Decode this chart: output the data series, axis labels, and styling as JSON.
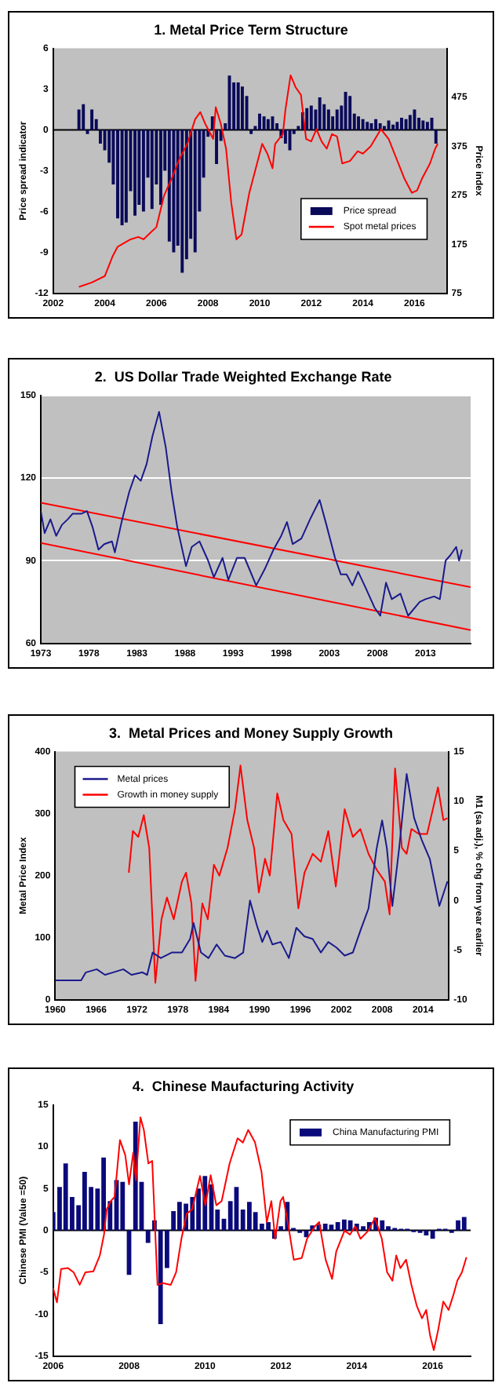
{
  "chart_data": [
    {
      "type": "bar",
      "title": "1. Metal Price Term Structure",
      "ylabel": "Price spread indicator",
      "y2label": "Price index",
      "xlim": [
        2002,
        2017.25
      ],
      "xticks": [
        2002,
        2004,
        2006,
        2008,
        2010,
        2012,
        2014,
        2016
      ],
      "ylim": [
        -12,
        6
      ],
      "yticks": [
        -12,
        -9,
        -6,
        -3,
        0,
        3,
        6
      ],
      "y2lim": [
        75,
        575
      ],
      "y2ticks": [
        75,
        175,
        275,
        375,
        475
      ],
      "legend": "bottom right",
      "series": [
        {
          "name": "Price spread",
          "type": "bar",
          "color": "#0a0a5a",
          "x": [
            2003.0,
            2003.17,
            2003.33,
            2003.5,
            2003.67,
            2003.83,
            2004.0,
            2004.17,
            2004.33,
            2004.5,
            2004.67,
            2004.83,
            2005.0,
            2005.17,
            2005.33,
            2005.5,
            2005.67,
            2005.83,
            2006.0,
            2006.17,
            2006.33,
            2006.5,
            2006.67,
            2006.83,
            2007.0,
            2007.17,
            2007.33,
            2007.5,
            2007.67,
            2007.83,
            2008.0,
            2008.17,
            2008.33,
            2008.5,
            2008.67,
            2008.83,
            2009.0,
            2009.17,
            2009.33,
            2009.5,
            2009.67,
            2009.83,
            2010.0,
            2010.17,
            2010.33,
            2010.5,
            2010.67,
            2010.83,
            2011.0,
            2011.17,
            2011.33,
            2011.5,
            2011.67,
            2011.83,
            2012.0,
            2012.17,
            2012.33,
            2012.5,
            2012.67,
            2012.83,
            2013.0,
            2013.17,
            2013.33,
            2013.5,
            2013.67,
            2013.83,
            2014.0,
            2014.17,
            2014.33,
            2014.5,
            2014.67,
            2014.83,
            2015.0,
            2015.17,
            2015.33,
            2015.5,
            2015.67,
            2015.83,
            2016.0,
            2016.17,
            2016.33,
            2016.5,
            2016.67,
            2016.83
          ],
          "values": [
            1.5,
            1.9,
            -0.3,
            1.5,
            0.8,
            -1.0,
            -1.5,
            -2.4,
            -4.0,
            -6.5,
            -7.0,
            -6.8,
            -4.5,
            -6.3,
            -5.5,
            -6.0,
            -3.5,
            -5.8,
            -4.0,
            -5.5,
            -3.0,
            -8.2,
            -9.0,
            -8.5,
            -10.5,
            -9.5,
            -8.0,
            -9.0,
            -6.0,
            -3.5,
            -0.5,
            1.0,
            -2.5,
            -0.8,
            0.5,
            4.0,
            3.5,
            3.5,
            3.2,
            2.5,
            -0.3,
            0.3,
            1.2,
            1.0,
            0.8,
            1.0,
            0.5,
            -0.6,
            -1.0,
            -1.5,
            -0.3,
            0.3,
            1.3,
            1.6,
            1.8,
            1.5,
            2.4,
            1.9,
            1.5,
            1.0,
            1.5,
            1.8,
            2.8,
            2.5,
            1.2,
            1.0,
            0.8,
            0.6,
            0.5,
            0.8,
            0.5,
            0.3,
            0.7,
            0.4,
            0.6,
            0.9,
            0.8,
            1.1,
            1.5,
            0.9,
            0.7,
            0.6,
            0.9,
            -1.0
          ]
        },
        {
          "name": "Spot metal prices",
          "type": "line",
          "axis": "y2",
          "color": "#ff0000",
          "x": [
            2003.0,
            2003.5,
            2004.0,
            2004.3,
            2004.5,
            2005.0,
            2005.3,
            2005.5,
            2005.8,
            2006.0,
            2006.3,
            2006.6,
            2006.9,
            2007.2,
            2007.5,
            2007.7,
            2007.9,
            2008.2,
            2008.3,
            2008.5,
            2008.7,
            2008.9,
            2009.1,
            2009.3,
            2009.6,
            2009.9,
            2010.1,
            2010.3,
            2010.5,
            2010.6,
            2010.9,
            2011.0,
            2011.2,
            2011.4,
            2011.6,
            2011.8,
            2012.0,
            2012.2,
            2012.4,
            2012.6,
            2012.8,
            2013.0,
            2013.2,
            2013.5,
            2013.8,
            2014.0,
            2014.3,
            2014.7,
            2015.0,
            2015.3,
            2015.6,
            2015.9,
            2016.1,
            2016.3,
            2016.6,
            2016.8,
            2016.9
          ],
          "values": [
            88,
            97,
            110,
            150,
            170,
            185,
            190,
            185,
            200,
            210,
            275,
            310,
            350,
            380,
            430,
            445,
            420,
            390,
            455,
            420,
            370,
            260,
            185,
            195,
            280,
            340,
            380,
            360,
            330,
            380,
            400,
            450,
            520,
            495,
            480,
            390,
            385,
            410,
            385,
            370,
            400,
            395,
            340,
            345,
            365,
            360,
            375,
            410,
            390,
            350,
            310,
            280,
            285,
            310,
            340,
            370,
            380
          ]
        }
      ]
    },
    {
      "type": "line",
      "title": "2.  US Dollar Trade Weighted Exchange Rate",
      "xlim": [
        1973,
        2017.7
      ],
      "xticks": [
        1973,
        1978,
        1983,
        1988,
        1993,
        1998,
        2003,
        2008,
        2013
      ],
      "ylim": [
        60,
        150
      ],
      "yticks": [
        60,
        90,
        120,
        150
      ],
      "grid": "y",
      "series": [
        {
          "color": "#1a1a8c",
          "x": [
            1973.0,
            1973.4,
            1974.0,
            1974.6,
            1975.2,
            1975.8,
            1976.3,
            1977.2,
            1977.8,
            1978.4,
            1979.0,
            1979.6,
            1980.4,
            1980.7,
            1981.4,
            1982.2,
            1982.8,
            1983.4,
            1984.0,
            1984.6,
            1985.3,
            1986.0,
            1986.6,
            1987.2,
            1988.1,
            1988.7,
            1989.5,
            1990.4,
            1991.0,
            1991.9,
            1992.5,
            1993.4,
            1994.2,
            1995.4,
            1996.3,
            1997.2,
            1998.0,
            1998.6,
            1999.2,
            2000.1,
            2001.0,
            2002.0,
            2002.7,
            2003.6,
            2004.2,
            2004.8,
            2005.4,
            2006.0,
            2006.8,
            2007.7,
            2008.3,
            2008.9,
            2009.5,
            2010.4,
            2011.2,
            2012.4,
            2013.0,
            2013.9,
            2014.5,
            2015.1,
            2015.6,
            2016.2,
            2016.5,
            2016.8
          ],
          "values": [
            108,
            100,
            105,
            99,
            103,
            105,
            107,
            107,
            108,
            102,
            94,
            96,
            97,
            93,
            104,
            115,
            121,
            119,
            125,
            135,
            144,
            131,
            115,
            102,
            88,
            95,
            97,
            90,
            84,
            91,
            83,
            91,
            91,
            81,
            87,
            94,
            99,
            104,
            96,
            98,
            105,
            112,
            103,
            91,
            85,
            85,
            81,
            86,
            80,
            73,
            70,
            82,
            76,
            78,
            70,
            75,
            76,
            77,
            76,
            90,
            92,
            95,
            90,
            94
          ]
        },
        {
          "color": "#ff0000",
          "x": [
            1973,
            2017.7
          ],
          "values": [
            111,
            80.4
          ]
        },
        {
          "color": "#ff0000",
          "x": [
            1973,
            2017.7
          ],
          "values": [
            96.4,
            64.8
          ]
        }
      ]
    },
    {
      "type": "line",
      "title": "3.  Metal Prices and Money Supply Growth",
      "ylabel": "Metal Price Index",
      "y2label": "M1 (sa adj.), % chg from year earlier",
      "xlim": [
        1960,
        2017.8
      ],
      "xticks": [
        1960,
        1966,
        1972,
        1978,
        1984,
        1990,
        1996,
        2002,
        2008,
        2014
      ],
      "ylim": [
        0,
        400
      ],
      "yticks": [
        0,
        100,
        200,
        300,
        400
      ],
      "y2lim": [
        -10,
        15
      ],
      "y2ticks": [
        -10,
        -5,
        0,
        5,
        10,
        15
      ],
      "legend": "top left",
      "series": [
        {
          "name": "Metal prices",
          "color": "#1a1a8c",
          "x": [
            1960,
            1963.8,
            1964.5,
            1966.1,
            1967.3,
            1968.5,
            1970.0,
            1971.2,
            1972.8,
            1973.5,
            1974.3,
            1975.5,
            1977.1,
            1978.6,
            1979.8,
            1980.3,
            1981.4,
            1982.5,
            1983.7,
            1984.9,
            1986.4,
            1987.6,
            1988.6,
            1989.6,
            1990.4,
            1991.1,
            1991.9,
            1993.1,
            1994.3,
            1995.4,
            1996.6,
            1997.8,
            1999.0,
            2000.1,
            2001.3,
            2002.5,
            2003.7,
            2004.8,
            2006.0,
            2007.2,
            2008.0,
            2008.7,
            2009.5,
            2010.5,
            2011.6,
            2012.7,
            2013.8,
            2015.0,
            2016.4,
            2017.6
          ],
          "values": [
            31,
            31,
            44,
            49,
            40,
            44,
            49,
            40,
            44,
            40,
            76,
            67,
            76,
            76,
            98,
            124,
            76,
            67,
            89,
            71,
            67,
            76,
            160,
            120,
            93,
            111,
            89,
            93,
            67,
            116,
            102,
            98,
            76,
            93,
            84,
            71,
            76,
            111,
            147,
            244,
            289,
            244,
            151,
            244,
            364,
            293,
            258,
            227,
            151,
            191
          ]
        },
        {
          "name": "Growth in money supply",
          "axis": "y2",
          "color": "#ff0000",
          "x": [
            1970.8,
            1971.4,
            1972.2,
            1973.0,
            1973.8,
            1974.7,
            1975.6,
            1976.4,
            1977.4,
            1978.6,
            1979.2,
            1980.0,
            1980.6,
            1981.6,
            1982.4,
            1983.3,
            1984.1,
            1985.3,
            1986.4,
            1987.2,
            1988.2,
            1989.2,
            1989.9,
            1990.8,
            1991.5,
            1992.6,
            1993.5,
            1994.7,
            1995.7,
            1996.6,
            1997.8,
            1999.0,
            2000.1,
            2001.2,
            2002.5,
            2003.7,
            2004.8,
            2006.0,
            2007.2,
            2008.4,
            2009.1,
            2009.9,
            2010.9,
            2011.6,
            2012.3,
            2013.4,
            2014.6,
            2016.2,
            2017.0,
            2017.6
          ],
          "values": [
            2.8,
            7,
            6.4,
            8.6,
            5.3,
            -8.3,
            -1.9,
            0.3,
            -1.9,
            1.9,
            2.8,
            -0.3,
            -8.1,
            -0.3,
            -1.9,
            3.6,
            2.5,
            5.3,
            9.2,
            13.6,
            8.1,
            5.3,
            0.8,
            4.2,
            2.5,
            10.8,
            8.1,
            6.7,
            -0.8,
            2.8,
            4.7,
            3.9,
            7,
            1.4,
            9.2,
            6.4,
            7.2,
            4.7,
            3.1,
            1.9,
            -1.4,
            13.3,
            5.3,
            4.7,
            7.2,
            6.7,
            6.7,
            11.4,
            8.1,
            8.3
          ]
        }
      ]
    },
    {
      "type": "bar",
      "title": "4.  Chinese Maufacturing Activity",
      "ylabel": "Chinese PMI (Value =50)",
      "xlim": [
        2006,
        2017
      ],
      "xticks": [
        2006,
        2008,
        2010,
        2012,
        2014,
        2016
      ],
      "ylim": [
        -15,
        15
      ],
      "yticks": [
        -15,
        -10,
        -5,
        0,
        5,
        10,
        15
      ],
      "legend": "top right",
      "series": [
        {
          "name": "China Manufacturing PMI",
          "type": "bar",
          "color": "#0a0a7a",
          "x": [
            2006.0,
            2006.17,
            2006.33,
            2006.5,
            2006.67,
            2006.83,
            2007.0,
            2007.17,
            2007.33,
            2007.5,
            2007.67,
            2007.83,
            2008.0,
            2008.17,
            2008.33,
            2008.5,
            2008.67,
            2008.83,
            2009.0,
            2009.17,
            2009.33,
            2009.5,
            2009.67,
            2009.83,
            2010.0,
            2010.17,
            2010.33,
            2010.5,
            2010.67,
            2010.83,
            2011.0,
            2011.17,
            2011.33,
            2011.5,
            2011.67,
            2011.83,
            2012.0,
            2012.17,
            2012.33,
            2012.5,
            2012.67,
            2012.83,
            2013.0,
            2013.17,
            2013.33,
            2013.5,
            2013.67,
            2013.83,
            2014.0,
            2014.17,
            2014.33,
            2014.5,
            2014.67,
            2014.83,
            2015.0,
            2015.17,
            2015.33,
            2015.5,
            2015.67,
            2015.83,
            2016.0,
            2016.17,
            2016.33,
            2016.5,
            2016.67,
            2016.83
          ],
          "values": [
            2.2,
            5.2,
            8.0,
            4.0,
            3.0,
            7.0,
            5.2,
            5.0,
            8.7,
            3.5,
            6.0,
            5.8,
            -5.3,
            13.0,
            5.8,
            -1.5,
            1.2,
            -11.2,
            -4.5,
            2.3,
            3.4,
            3.2,
            4.0,
            5.0,
            6.5,
            5.5,
            2.5,
            1.4,
            3.5,
            5.2,
            2.5,
            3.4,
            2.2,
            0.8,
            1.0,
            -1.0,
            0.5,
            3.4,
            0.3,
            -0.3,
            -0.8,
            0.6,
            0.7,
            0.8,
            0.7,
            1.0,
            1.3,
            1.2,
            0.8,
            0.5,
            1.0,
            1.5,
            1.2,
            0.5,
            0.3,
            0.2,
            0.2,
            -0.2,
            -0.3,
            -0.6,
            -1.0,
            0.2,
            0.2,
            -0.3,
            1.2,
            1.6
          ]
        },
        {
          "type": "line",
          "color": "#ff0000",
          "x": [
            2006.0,
            2006.1,
            2006.21,
            2006.39,
            2006.54,
            2006.7,
            2006.85,
            2007.06,
            2007.23,
            2007.34,
            2007.41,
            2007.52,
            2007.62,
            2007.76,
            2007.9,
            2008.0,
            2008.11,
            2008.18,
            2008.3,
            2008.39,
            2008.51,
            2008.61,
            2008.75,
            2008.89,
            2009.1,
            2009.24,
            2009.38,
            2009.52,
            2009.66,
            2009.87,
            2010.01,
            2010.15,
            2010.3,
            2010.44,
            2010.65,
            2010.86,
            2011.0,
            2011.14,
            2011.32,
            2011.49,
            2011.63,
            2011.75,
            2011.85,
            2011.99,
            2012.06,
            2012.2,
            2012.34,
            2012.55,
            2012.69,
            2012.9,
            2013.01,
            2013.18,
            2013.35,
            2013.46,
            2013.68,
            2013.82,
            2013.96,
            2014.1,
            2014.31,
            2014.48,
            2014.66,
            2014.8,
            2014.94,
            2015.04,
            2015.15,
            2015.3,
            2015.44,
            2015.58,
            2015.72,
            2015.83,
            2015.93,
            2016.03,
            2016.14,
            2016.28,
            2016.42,
            2016.56,
            2016.65,
            2016.77,
            2016.89
          ],
          "values": [
            -6.9,
            -8.6,
            -4.6,
            -4.5,
            -5.0,
            -6.5,
            -5.0,
            -4.9,
            -3.0,
            -0.5,
            2.5,
            3.5,
            4.0,
            10.8,
            9.0,
            5.5,
            9.3,
            6.0,
            13.5,
            12.0,
            8.0,
            8.3,
            -6.5,
            -6.3,
            -6.5,
            -5.0,
            -1.0,
            2.0,
            2.5,
            6.5,
            3.0,
            6.6,
            3.0,
            3.5,
            8.0,
            11.0,
            10.5,
            12.0,
            10.5,
            7.0,
            1.0,
            3.5,
            -1.0,
            3.5,
            4.0,
            0.5,
            -3.5,
            -3.3,
            -1.0,
            0.5,
            1.0,
            -3.5,
            -5.8,
            -2.5,
            0.0,
            -0.5,
            0.5,
            -1.0,
            0.0,
            1.5,
            -1.0,
            -5.0,
            -6.0,
            -3.0,
            -4.5,
            -3.5,
            -6.5,
            -9.0,
            -10.5,
            -9.5,
            -12.5,
            -14.3,
            -12.0,
            -8.5,
            -9.5,
            -7.5,
            -6.0,
            -5.0,
            -3.2
          ]
        }
      ]
    }
  ]
}
